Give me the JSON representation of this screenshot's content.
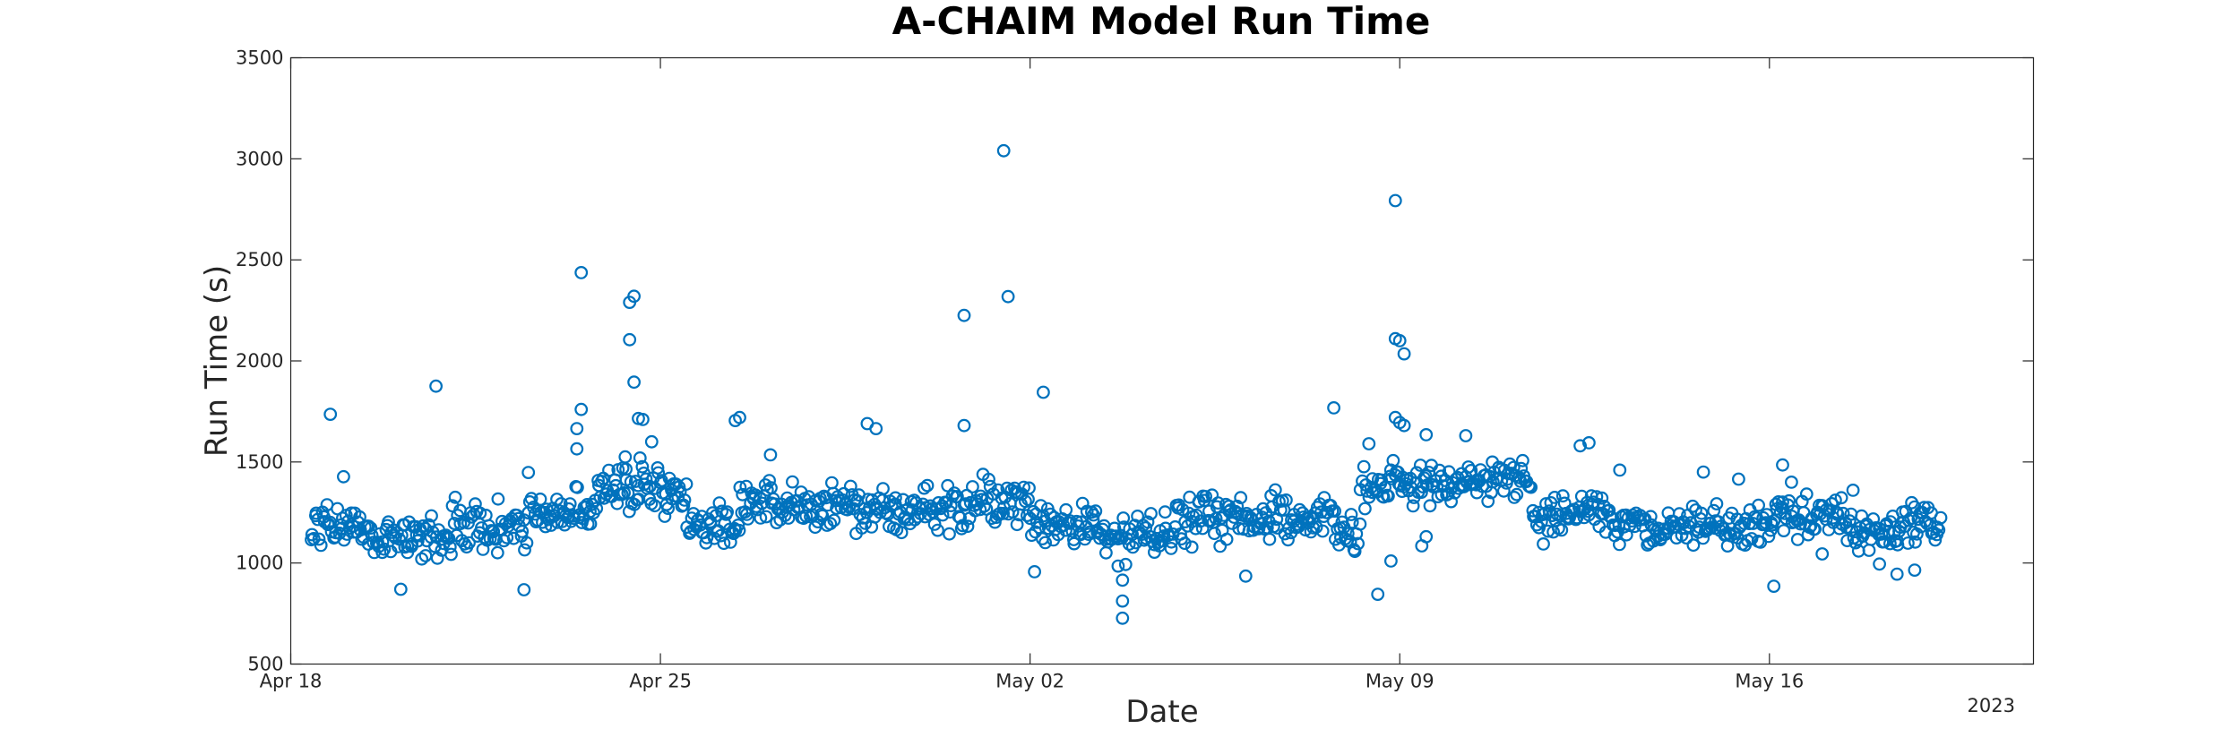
{
  "chart_data": {
    "type": "scatter",
    "title": "A-CHAIM Model Run Time",
    "xlabel": "Date",
    "ylabel": "Run Time (s)",
    "x_year_label": "2023",
    "xlim": [
      "2023-04-18",
      "2023-05-21"
    ],
    "ylim": [
      500,
      3500
    ],
    "x_ticks": [
      {
        "date": "2023-04-18",
        "label": "Apr 18"
      },
      {
        "date": "2023-04-25",
        "label": "Apr 25"
      },
      {
        "date": "2023-05-02",
        "label": "May 02"
      },
      {
        "date": "2023-05-09",
        "label": "May 09"
      },
      {
        "date": "2023-05-16",
        "label": "May 16"
      }
    ],
    "y_ticks": [
      500,
      1000,
      1500,
      2000,
      2500,
      3000,
      3500
    ],
    "grid": false,
    "marker": "circle-open",
    "color": "#0072BD",
    "series": [
      {
        "points": [
          [
            "2023-04-18 18:00",
            1736
          ],
          [
            "2023-04-19 00:00",
            1427
          ],
          [
            "2023-04-20 02:00",
            870
          ],
          [
            "2023-04-20 18:00",
            1875
          ],
          [
            "2023-04-22 10:00",
            868
          ],
          [
            "2023-04-22 12:00",
            1448
          ],
          [
            "2023-04-23 10:00",
            1665
          ],
          [
            "2023-04-23 10:00",
            1565
          ],
          [
            "2023-04-23 12:00",
            2437
          ],
          [
            "2023-04-23 12:00",
            1760
          ],
          [
            "2023-04-24 10:00",
            2290
          ],
          [
            "2023-04-24 12:00",
            2320
          ],
          [
            "2023-04-24 10:00",
            2105
          ],
          [
            "2023-04-24 12:00",
            1895
          ],
          [
            "2023-04-24 14:00",
            1715
          ],
          [
            "2023-04-24 16:00",
            1710
          ],
          [
            "2023-04-24 08:00",
            1525
          ],
          [
            "2023-04-24 20:00",
            1600
          ],
          [
            "2023-04-26 10:00",
            1705
          ],
          [
            "2023-04-26 12:00",
            1720
          ],
          [
            "2023-04-27 02:00",
            1535
          ],
          [
            "2023-04-28 22:00",
            1690
          ],
          [
            "2023-04-29 02:00",
            1665
          ],
          [
            "2023-04-30 18:00",
            2225
          ],
          [
            "2023-04-30 18:00",
            1680
          ],
          [
            "2023-05-01 12:00",
            3040
          ],
          [
            "2023-05-01 14:00",
            2318
          ],
          [
            "2023-05-02 06:00",
            1845
          ],
          [
            "2023-05-02 02:00",
            957
          ],
          [
            "2023-05-03 18:00",
            812
          ],
          [
            "2023-05-03 18:00",
            727
          ],
          [
            "2023-05-03 18:00",
            915
          ],
          [
            "2023-05-03 16:00",
            985
          ],
          [
            "2023-05-06 02:00",
            935
          ],
          [
            "2023-05-07 18:00",
            1768
          ],
          [
            "2023-05-08 14:00",
            845
          ],
          [
            "2023-05-08 20:00",
            1010
          ],
          [
            "2023-05-08 10:00",
            1590
          ],
          [
            "2023-05-08 22:00",
            2793
          ],
          [
            "2023-05-08 22:00",
            1720
          ],
          [
            "2023-05-09 00:00",
            1695
          ],
          [
            "2023-05-09 02:00",
            1680
          ],
          [
            "2023-05-08 22:00",
            2110
          ],
          [
            "2023-05-09 00:00",
            2100
          ],
          [
            "2023-05-09 02:00",
            2035
          ],
          [
            "2023-05-09 10:00",
            1085
          ],
          [
            "2023-05-09 12:00",
            1130
          ],
          [
            "2023-05-09 12:00",
            1635
          ],
          [
            "2023-05-10 06:00",
            1630
          ],
          [
            "2023-05-12 10:00",
            1580
          ],
          [
            "2023-05-12 14:00",
            1595
          ],
          [
            "2023-05-13 04:00",
            1460
          ],
          [
            "2023-05-14 18:00",
            1450
          ],
          [
            "2023-05-15 10:00",
            1415
          ],
          [
            "2023-05-16 02:00",
            885
          ],
          [
            "2023-05-16 06:00",
            1485
          ],
          [
            "2023-05-16 10:00",
            1400
          ],
          [
            "2023-05-17 00:00",
            1045
          ],
          [
            "2023-05-17 14:00",
            1360
          ],
          [
            "2023-05-18 02:00",
            995
          ],
          [
            "2023-05-18 10:00",
            945
          ],
          [
            "2023-05-18 18:00",
            965
          ]
        ],
        "bands": [
          {
            "start": "2023-04-18 09:00",
            "end": "2023-04-19 12:00",
            "center": 1175,
            "spread": 85
          },
          {
            "start": "2023-04-19 12:00",
            "end": "2023-04-21 00:00",
            "center": 1130,
            "spread": 80
          },
          {
            "start": "2023-04-21 00:00",
            "end": "2023-04-22 12:00",
            "center": 1175,
            "spread": 95
          },
          {
            "start": "2023-04-22 12:00",
            "end": "2023-04-23 18:00",
            "center": 1240,
            "spread": 95
          },
          {
            "start": "2023-04-23 18:00",
            "end": "2023-04-25 12:00",
            "center": 1345,
            "spread": 100
          },
          {
            "start": "2023-04-25 12:00",
            "end": "2023-04-26 12:00",
            "center": 1180,
            "spread": 85
          },
          {
            "start": "2023-04-26 12:00",
            "end": "2023-04-27 18:00",
            "center": 1290,
            "spread": 105
          },
          {
            "start": "2023-04-27 18:00",
            "end": "2023-04-29 12:00",
            "center": 1265,
            "spread": 85
          },
          {
            "start": "2023-04-29 12:00",
            "end": "2023-05-01 00:00",
            "center": 1270,
            "spread": 90
          },
          {
            "start": "2023-05-01 00:00",
            "end": "2023-05-02 00:00",
            "center": 1300,
            "spread": 95
          },
          {
            "start": "2023-05-02 00:00",
            "end": "2023-05-03 06:00",
            "center": 1195,
            "spread": 80
          },
          {
            "start": "2023-05-03 06:00",
            "end": "2023-05-04 18:00",
            "center": 1135,
            "spread": 75
          },
          {
            "start": "2023-05-04 18:00",
            "end": "2023-05-06 12:00",
            "center": 1225,
            "spread": 95
          },
          {
            "start": "2023-05-06 12:00",
            "end": "2023-05-07 18:00",
            "center": 1215,
            "spread": 90
          },
          {
            "start": "2023-05-07 18:00",
            "end": "2023-05-08 06:00",
            "center": 1150,
            "spread": 85
          },
          {
            "start": "2023-05-08 06:00",
            "end": "2023-05-09 00:00",
            "center": 1390,
            "spread": 80
          },
          {
            "start": "2023-05-09 00:00",
            "end": "2023-05-10 12:00",
            "center": 1390,
            "spread": 75
          },
          {
            "start": "2023-05-10 12:00",
            "end": "2023-05-11 12:00",
            "center": 1415,
            "spread": 80
          },
          {
            "start": "2023-05-11 12:00",
            "end": "2023-05-13 00:00",
            "center": 1245,
            "spread": 85
          },
          {
            "start": "2023-05-13 00:00",
            "end": "2023-05-14 12:00",
            "center": 1175,
            "spread": 80
          },
          {
            "start": "2023-05-14 12:00",
            "end": "2023-05-16 00:00",
            "center": 1180,
            "spread": 75
          },
          {
            "start": "2023-05-16 00:00",
            "end": "2023-05-17 12:00",
            "center": 1235,
            "spread": 80
          },
          {
            "start": "2023-05-17 12:00",
            "end": "2023-05-18 12:00",
            "center": 1150,
            "spread": 85
          },
          {
            "start": "2023-05-18 12:00",
            "end": "2023-05-19 06:00",
            "center": 1190,
            "spread": 85
          }
        ],
        "samples_per_day": 38
      }
    ]
  }
}
